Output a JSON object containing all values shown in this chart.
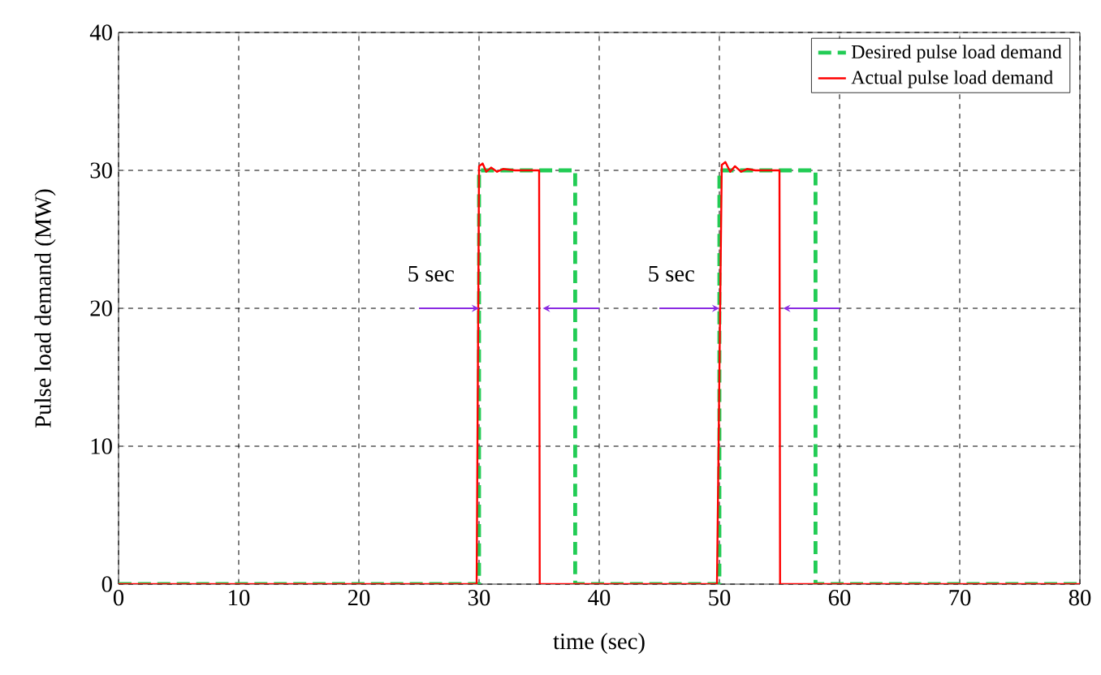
{
  "chart_data": {
    "type": "line",
    "xlabel": "time (sec)",
    "ylabel": "Pulse load demand (MW)",
    "xlim": [
      0,
      80
    ],
    "ylim": [
      0,
      40
    ],
    "xticks": [
      0,
      10,
      20,
      30,
      40,
      50,
      60,
      70,
      80
    ],
    "yticks": [
      0,
      10,
      20,
      30,
      40
    ],
    "grid": true,
    "legend": "top right",
    "annotations": [
      {
        "text": "5 sec",
        "x": 30,
        "y": 20
      },
      {
        "text": "5 sec",
        "x": 50,
        "y": 20
      }
    ],
    "series": [
      {
        "name": "Desired pulse load demand",
        "color": "#22cc55",
        "line_style": "dashed",
        "x": [
          0,
          30,
          30,
          38,
          38,
          50,
          50,
          58,
          58,
          80
        ],
        "values": [
          0,
          0,
          30,
          30,
          0,
          0,
          30,
          30,
          0,
          0
        ]
      },
      {
        "name": "Actual pulse load demand",
        "color": "#ff0000",
        "line_style": "solid",
        "x": [
          0,
          29.8,
          30,
          30.3,
          30.6,
          31,
          31.5,
          32,
          33,
          35,
          35.05,
          49.8,
          50.2,
          50.5,
          50.9,
          51.3,
          51.8,
          52.3,
          53,
          55,
          55.05,
          80
        ],
        "values": [
          0,
          0,
          30.3,
          30.5,
          29.9,
          30.2,
          29.9,
          30.1,
          30,
          30,
          0,
          0,
          30.4,
          30.6,
          29.9,
          30.3,
          29.9,
          30.1,
          30,
          30,
          0,
          0
        ]
      }
    ]
  }
}
